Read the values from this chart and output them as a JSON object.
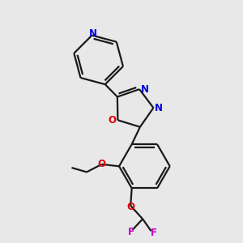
{
  "bg_color": "#e8e8e8",
  "bond_color": "#1a1a1a",
  "n_color": "#0000dd",
  "o_color": "#dd0000",
  "f_color": "#cc00cc",
  "line_width": 1.6,
  "fig_size": [
    3.0,
    3.0
  ],
  "dpi": 100,
  "xlim": [
    0,
    10
  ],
  "ylim": [
    0,
    10
  ]
}
